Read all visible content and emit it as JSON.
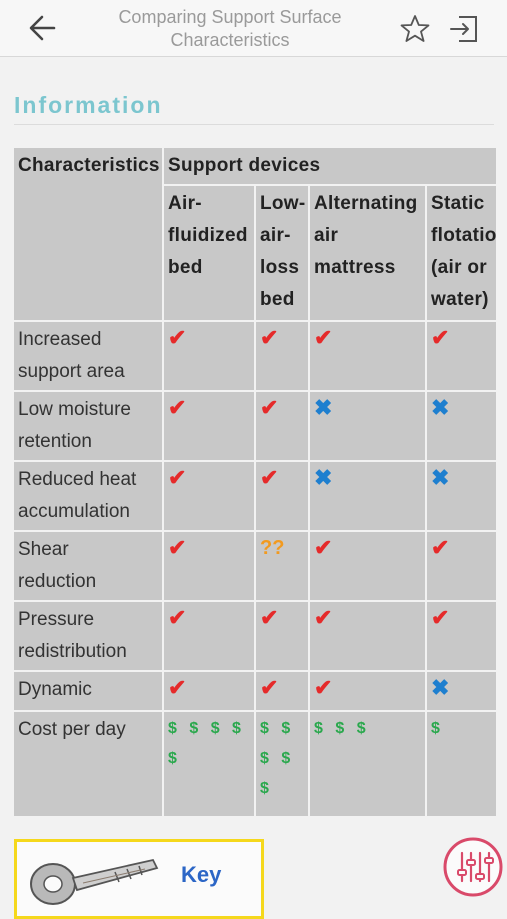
{
  "header": {
    "title_line1": "Comparing Support Surface",
    "title_line2": "Characteristics",
    "back_icon": "arrow-left-icon",
    "favorite_icon": "star-outline-icon",
    "exit_icon": "sign-out-icon"
  },
  "section": {
    "title": "Information"
  },
  "table": {
    "corner_header": "Characteristics",
    "group_header": "Support devices",
    "devices": [
      {
        "lines": [
          "Air-",
          "fluidized",
          "bed"
        ]
      },
      {
        "lines": [
          "Low-",
          "air-",
          "loss",
          "bed"
        ]
      },
      {
        "lines": [
          "Alternating",
          "air",
          "mattress"
        ]
      },
      {
        "lines": [
          "Static",
          "flotatio",
          "(air or",
          "water)"
        ]
      }
    ],
    "rows": [
      {
        "lines": [
          "Increased",
          "support area"
        ],
        "values": [
          "✔",
          "✔",
          "✔",
          "✔"
        ]
      },
      {
        "lines": [
          "Low moisture",
          "retention"
        ],
        "values": [
          "✔",
          "✔",
          "✖",
          "✖"
        ]
      },
      {
        "lines": [
          "Reduced heat",
          "accumulation"
        ],
        "values": [
          "✔",
          "✔",
          "✖",
          "✖"
        ]
      },
      {
        "lines": [
          "Shear",
          "reduction"
        ],
        "values": [
          "✔",
          "??",
          "✔",
          "✔"
        ]
      },
      {
        "lines": [
          "Pressure",
          "redistribution"
        ],
        "values": [
          "✔",
          "✔",
          "✔",
          "✔"
        ]
      },
      {
        "lines": [
          "Dynamic"
        ],
        "values": [
          "✔",
          "✔",
          "✔",
          "✖"
        ]
      },
      {
        "lines": [
          "Cost per day"
        ],
        "values": [
          "$ $ $ $ $",
          "$ $ $ $ $",
          "$ $ $",
          "$"
        ]
      }
    ]
  },
  "key": {
    "label": "Key",
    "icon": "key-icon"
  },
  "fab": {
    "icon": "sliders-icon"
  },
  "colors": {
    "accent": "#7cc6cf",
    "check": "#e52a2a",
    "cross": "#1e7fcf",
    "unknown": "#f29a1f",
    "cost": "#2aa84d"
  }
}
